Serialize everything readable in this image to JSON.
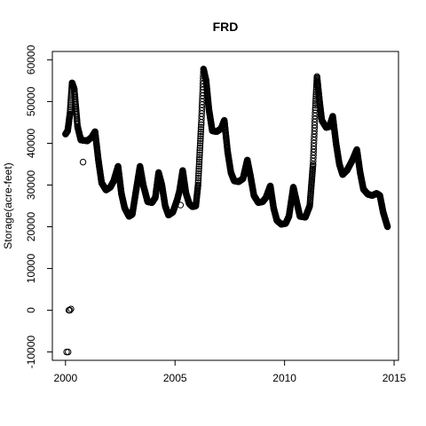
{
  "chart_data": {
    "type": "scatter",
    "title": "FRD",
    "xlabel": "",
    "ylabel": "Storage(acre-feet)",
    "xlim": [
      1999.4,
      2015.2
    ],
    "ylim": [
      -12000,
      62000
    ],
    "x_ticks": [
      2000,
      2005,
      2010,
      2015
    ],
    "y_ticks": [
      -10000,
      0,
      10000,
      20000,
      30000,
      40000,
      50000,
      60000
    ],
    "grid": false,
    "legend": "none",
    "marker": "open-circle",
    "color": "#000000",
    "series_keyframes": [
      [
        2000.0,
        42200
      ],
      [
        2000.1,
        43000
      ],
      [
        2000.2,
        47000
      ],
      [
        2000.3,
        54500
      ],
      [
        2000.4,
        53000
      ],
      [
        2000.55,
        44000
      ],
      [
        2000.7,
        40800
      ],
      [
        2001.0,
        40600
      ],
      [
        2001.2,
        41500
      ],
      [
        2001.35,
        42800
      ],
      [
        2001.5,
        36000
      ],
      [
        2001.65,
        30500
      ],
      [
        2001.85,
        28800
      ],
      [
        2002.05,
        29500
      ],
      [
        2002.2,
        31000
      ],
      [
        2002.4,
        34500
      ],
      [
        2002.55,
        28000
      ],
      [
        2002.7,
        24500
      ],
      [
        2002.9,
        22500
      ],
      [
        2003.05,
        23000
      ],
      [
        2003.2,
        28000
      ],
      [
        2003.4,
        34500
      ],
      [
        2003.55,
        30000
      ],
      [
        2003.75,
        26000
      ],
      [
        2003.95,
        25800
      ],
      [
        2004.1,
        27000
      ],
      [
        2004.25,
        33000
      ],
      [
        2004.4,
        30000
      ],
      [
        2004.55,
        25000
      ],
      [
        2004.7,
        22800
      ],
      [
        2004.9,
        23500
      ],
      [
        2005.1,
        26500
      ],
      [
        2005.2,
        28500
      ],
      [
        2005.35,
        33500
      ],
      [
        2005.5,
        28000
      ],
      [
        2005.65,
        25500
      ],
      [
        2005.8,
        24800
      ],
      [
        2005.95,
        25000
      ],
      [
        2006.05,
        30000
      ],
      [
        2006.2,
        45000
      ],
      [
        2006.3,
        57800
      ],
      [
        2006.42,
        55000
      ],
      [
        2006.55,
        48000
      ],
      [
        2006.7,
        43000
      ],
      [
        2006.9,
        42800
      ],
      [
        2007.1,
        43500
      ],
      [
        2007.25,
        45500
      ],
      [
        2007.4,
        38000
      ],
      [
        2007.55,
        33000
      ],
      [
        2007.7,
        31000
      ],
      [
        2007.9,
        30800
      ],
      [
        2008.1,
        31500
      ],
      [
        2008.3,
        36000
      ],
      [
        2008.45,
        32000
      ],
      [
        2008.6,
        27500
      ],
      [
        2008.8,
        25800
      ],
      [
        2009.0,
        26000
      ],
      [
        2009.15,
        27000
      ],
      [
        2009.35,
        29800
      ],
      [
        2009.5,
        24500
      ],
      [
        2009.65,
        21500
      ],
      [
        2009.85,
        20600
      ],
      [
        2010.05,
        20800
      ],
      [
        2010.2,
        22500
      ],
      [
        2010.4,
        29500
      ],
      [
        2010.55,
        26000
      ],
      [
        2010.7,
        22500
      ],
      [
        2010.95,
        22300
      ],
      [
        2011.15,
        25000
      ],
      [
        2011.3,
        35000
      ],
      [
        2011.4,
        48000
      ],
      [
        2011.48,
        56000
      ],
      [
        2011.6,
        50000
      ],
      [
        2011.7,
        45500
      ],
      [
        2011.9,
        43800
      ],
      [
        2012.05,
        44000
      ],
      [
        2012.2,
        46500
      ],
      [
        2012.35,
        40000
      ],
      [
        2012.5,
        35000
      ],
      [
        2012.65,
        32500
      ],
      [
        2012.85,
        33500
      ],
      [
        2013.1,
        36000
      ],
      [
        2013.3,
        38500
      ],
      [
        2013.45,
        33000
      ],
      [
        2013.6,
        29000
      ],
      [
        2013.8,
        27800
      ],
      [
        2014.0,
        27500
      ],
      [
        2014.2,
        28000
      ],
      [
        2014.35,
        27500
      ],
      [
        2014.5,
        23500
      ],
      [
        2014.7,
        20000
      ]
    ],
    "outliers": [
      [
        2000.05,
        -10000
      ],
      [
        2000.12,
        -10000
      ],
      [
        2000.15,
        0
      ],
      [
        2000.2,
        0
      ],
      [
        2000.25,
        300
      ],
      [
        2000.8,
        35500
      ],
      [
        2005.25,
        25200
      ]
    ]
  }
}
